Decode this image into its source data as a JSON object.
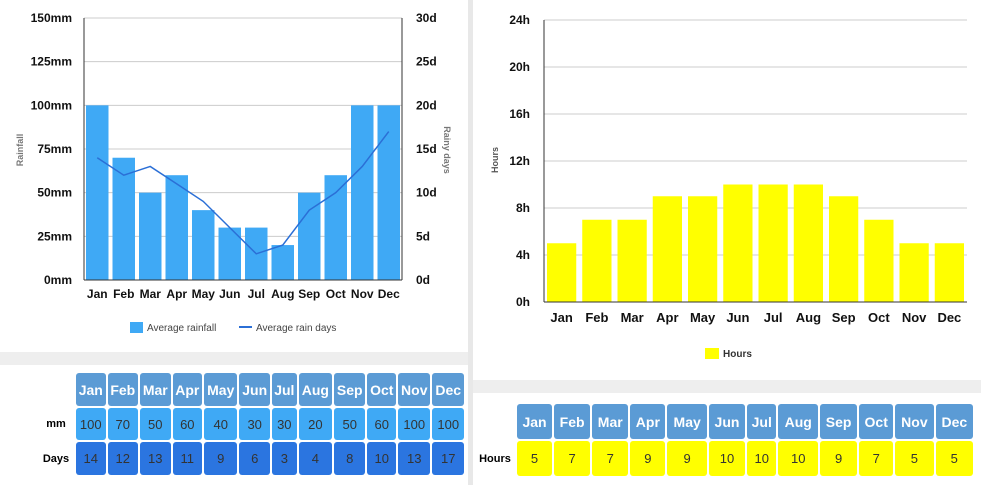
{
  "chart_data": [
    {
      "type": "bar+line",
      "title": "",
      "categories": [
        "Jan",
        "Feb",
        "Mar",
        "Apr",
        "May",
        "Jun",
        "Jul",
        "Aug",
        "Sep",
        "Oct",
        "Nov",
        "Dec"
      ],
      "series": [
        {
          "name": "Average rainfall",
          "type": "bar",
          "axis": "left",
          "values": [
            100,
            70,
            50,
            60,
            40,
            30,
            30,
            20,
            50,
            60,
            100,
            100
          ]
        },
        {
          "name": "Average rain days",
          "type": "line",
          "axis": "right",
          "values": [
            14,
            12,
            13,
            11,
            9,
            6,
            3,
            4,
            8,
            10,
            13,
            17
          ]
        }
      ],
      "ylabel": "Rainfall",
      "y2label": "Rainy days",
      "ylim": [
        0,
        150
      ],
      "y2lim": [
        0,
        30
      ],
      "yticks": [
        "0mm",
        "25mm",
        "50mm",
        "75mm",
        "100mm",
        "125mm",
        "150mm"
      ],
      "y2ticks": [
        "0d",
        "5d",
        "10d",
        "15d",
        "20d",
        "25d",
        "30d"
      ],
      "legend": "bottom",
      "grid": true
    },
    {
      "type": "bar",
      "title": "",
      "categories": [
        "Jan",
        "Feb",
        "Mar",
        "Apr",
        "May",
        "Jun",
        "Jul",
        "Aug",
        "Sep",
        "Oct",
        "Nov",
        "Dec"
      ],
      "series": [
        {
          "name": "Hours",
          "values": [
            5,
            7,
            7,
            9,
            9,
            10,
            10,
            10,
            9,
            7,
            5,
            5
          ]
        }
      ],
      "ylabel": "Hours",
      "ylim": [
        0,
        24
      ],
      "yticks": [
        "0h",
        "4h",
        "8h",
        "12h",
        "16h",
        "20h",
        "24h"
      ],
      "legend": "bottom",
      "grid": true
    }
  ],
  "colors": {
    "rain": "#3fa9f5",
    "line": "#2b6fd6",
    "sun": "#ffff00",
    "header": "#5b9bd5",
    "days": "#2b75e0"
  },
  "rain_table": {
    "months": [
      "Jan",
      "Feb",
      "Mar",
      "Apr",
      "May",
      "Jun",
      "Jul",
      "Aug",
      "Sep",
      "Oct",
      "Nov",
      "Dec"
    ],
    "mm_label": "mm",
    "mm": [
      "100",
      "70",
      "50",
      "60",
      "40",
      "30",
      "30",
      "20",
      "50",
      "60",
      "100",
      "100"
    ],
    "days_label": "Days",
    "days": [
      "14",
      "12",
      "13",
      "11",
      "9",
      "6",
      "3",
      "4",
      "8",
      "10",
      "13",
      "17"
    ]
  },
  "sun_table": {
    "months": [
      "Jan",
      "Feb",
      "Mar",
      "Apr",
      "May",
      "Jun",
      "Jul",
      "Aug",
      "Sep",
      "Oct",
      "Nov",
      "Dec"
    ],
    "hours_label": "Hours",
    "hours": [
      "5",
      "7",
      "7",
      "9",
      "9",
      "10",
      "10",
      "10",
      "9",
      "7",
      "5",
      "5"
    ]
  }
}
